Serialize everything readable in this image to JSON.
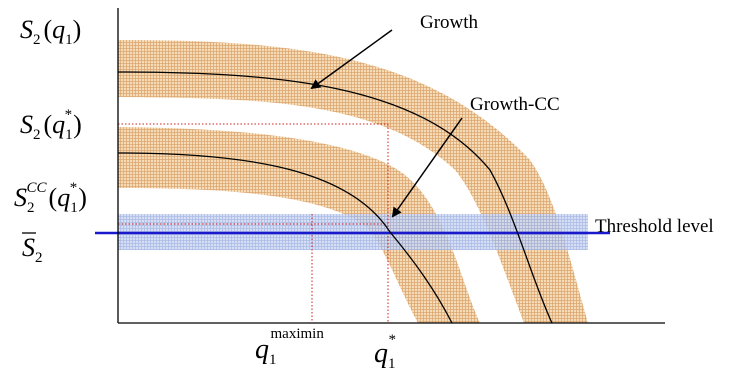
{
  "labels": {
    "s2_q1": {
      "base": "S",
      "sub": "2",
      "open": "(",
      "var": "q",
      "var_sub": "1",
      "close": ")"
    },
    "s2_q1_star": {
      "base": "S",
      "sub": "2",
      "open": "(",
      "var": "q",
      "var_sub": "1",
      "var_sup": "*",
      "close": ")"
    },
    "s2cc_q1_star": {
      "base": "S",
      "sub": "2",
      "sup": "CC",
      "open": "(",
      "var": "q",
      "var_sub": "1",
      "var_sup": "*",
      "close": ")"
    },
    "s2_bar": {
      "base": "S",
      "sub": "2"
    },
    "q1_maximin": {
      "var": "q",
      "sub": "1",
      "sup": "maximin"
    },
    "q1_star": {
      "var": "q",
      "sub": "1",
      "sup": "*"
    }
  },
  "annotations": {
    "growth": "Growth",
    "growth_cc": "Growth-CC",
    "threshold": "Threshold level"
  },
  "colors": {
    "band_fill": "#f6dcb6",
    "band_hatch": "#d9a86f",
    "threshold_band": "#c8d4f0",
    "threshold_hatch": "#9fb2e2",
    "threshold_line": "#1a1acc",
    "guide": "#d12020",
    "curve": "#000000"
  }
}
